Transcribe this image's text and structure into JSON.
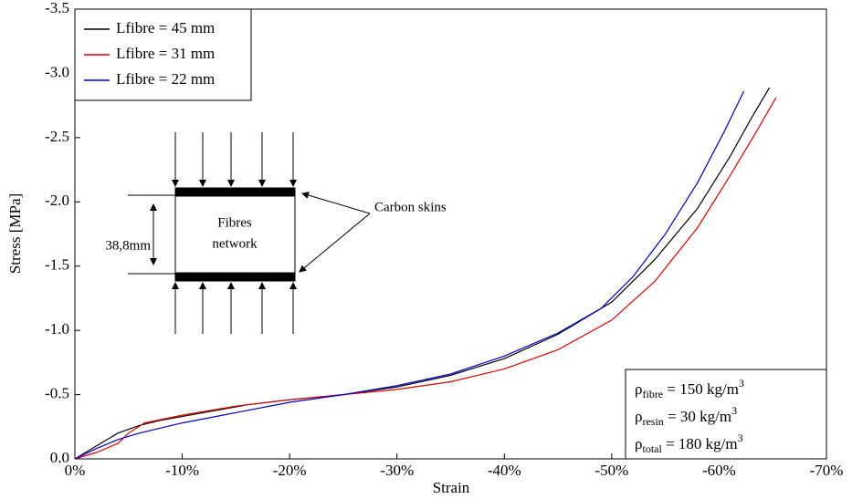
{
  "chart_data": {
    "type": "line",
    "x_label": "Strain",
    "y_label": "Stress [MPa]",
    "xlim": [
      0,
      -70
    ],
    "ylim": [
      0,
      -3.5
    ],
    "xticks": [
      {
        "value": 0,
        "label": "0%"
      },
      {
        "value": -10,
        "label": "-10%"
      },
      {
        "value": -20,
        "label": "-20%"
      },
      {
        "value": -30,
        "label": "-30%"
      },
      {
        "value": -40,
        "label": "-40%"
      },
      {
        "value": -50,
        "label": "-50%"
      },
      {
        "value": -60,
        "label": "-60%"
      },
      {
        "value": -70,
        "label": "-70%"
      }
    ],
    "yticks": [
      {
        "value": 0,
        "label": "0.0"
      },
      -0.5,
      {
        "value": -1,
        "label": "-1.0"
      },
      -1.5,
      {
        "value": -2,
        "label": "-2.0"
      },
      -2.5,
      {
        "value": -3,
        "label": "-3.0"
      },
      -3.5
    ],
    "legend": "upper left",
    "series": [
      {
        "name": "Lfibre = 45 mm",
        "color": "#000000",
        "x": [
          0,
          -2,
          -4,
          -6,
          -8,
          -12,
          -16,
          -20,
          -25,
          -30,
          -35,
          -40,
          -45,
          -50,
          -54,
          -58,
          -61,
          -63,
          -64.7
        ],
        "values": [
          0,
          -0.1,
          -0.2,
          -0.26,
          -0.3,
          -0.36,
          -0.42,
          -0.46,
          -0.5,
          -0.56,
          -0.65,
          -0.78,
          -0.97,
          -1.22,
          -1.55,
          -1.95,
          -2.35,
          -2.65,
          -2.89
        ]
      },
      {
        "name": "Lfibre = 31 mm",
        "color": "#e00000",
        "x": [
          0,
          -2,
          -4,
          -5,
          -6.5,
          -10,
          -15,
          -20,
          -25,
          -30,
          -35,
          -40,
          -45,
          -50,
          -54,
          -58,
          -61,
          -63.5,
          -65.3
        ],
        "values": [
          0,
          -0.05,
          -0.12,
          -0.2,
          -0.28,
          -0.34,
          -0.41,
          -0.46,
          -0.5,
          -0.54,
          -0.6,
          -0.7,
          -0.85,
          -1.08,
          -1.38,
          -1.8,
          -2.2,
          -2.55,
          -2.81
        ]
      },
      {
        "name": "Lfibre = 22 mm",
        "color": "#0000d0",
        "x": [
          0,
          -2,
          -4,
          -6,
          -10,
          -15,
          -20,
          -25,
          -30,
          -35,
          -40,
          -45,
          -49,
          -52,
          -55,
          -58,
          -60.5,
          -62.3
        ],
        "values": [
          0,
          -0.08,
          -0.15,
          -0.2,
          -0.28,
          -0.36,
          -0.44,
          -0.5,
          -0.57,
          -0.66,
          -0.8,
          -0.98,
          -1.17,
          -1.42,
          -1.75,
          -2.15,
          -2.55,
          -2.86
        ]
      }
    ],
    "annotations": {
      "skins": "Carbon skins",
      "core_line1": "Fibres",
      "core_line2": "network",
      "thickness": "38,8mm"
    },
    "densities": [
      {
        "symbol": "ρ",
        "sub": "fibre",
        "text": " = 150 kg/m",
        "sup": "3"
      },
      {
        "symbol": "ρ",
        "sub": "resin",
        "text": " = 30 kg/m",
        "sup": "3"
      },
      {
        "symbol": "ρ",
        "sub": "total",
        "text": " = 180 kg/m",
        "sup": "3"
      }
    ]
  }
}
